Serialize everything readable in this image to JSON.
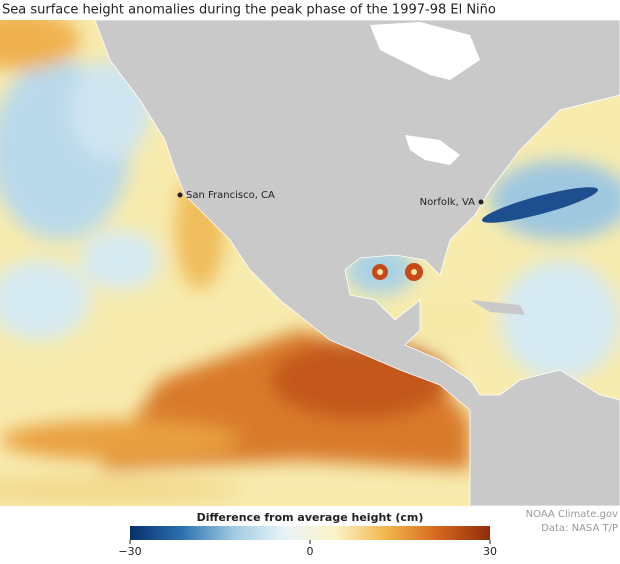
{
  "title": "Sea surface height anomalies during the peak phase of the 1997-98 El Niño",
  "places": [
    "San Francisco, CA",
    "Norfolk, VA"
  ],
  "colorbar": {
    "label": "Difference from average height (cm)",
    "lim": [
      -30,
      30
    ],
    "ticks": [
      {
        "value": -30,
        "label": "−30"
      },
      0,
      30
    ],
    "colors": [
      "#08306b",
      "#2c6fb0",
      "#9ecae1",
      "#e8f3f8",
      "#fbf3c4",
      "#f2b54a",
      "#d4661f",
      "#8f2d0a"
    ]
  },
  "credits": [
    "NOAA Climate.gov",
    "Data: NASA T/P"
  ]
}
